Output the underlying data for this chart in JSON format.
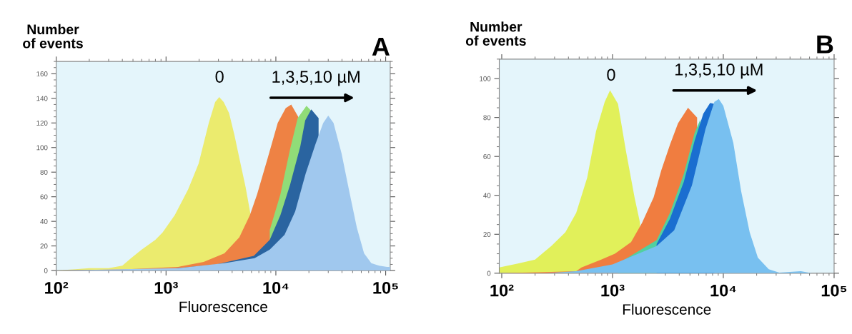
{
  "chart_data": [
    {
      "type": "area",
      "title": "A",
      "xlabel": "Fluorescence",
      "ylabel": "Number\nof events",
      "log": "x",
      "grid": false,
      "legend": false,
      "xlim": [
        100,
        110000
      ],
      "ylim": [
        0,
        170
      ],
      "xticks": [
        {
          "value": 100,
          "label": "10²"
        },
        {
          "value": 1000,
          "label": "10³"
        },
        {
          "value": 10000,
          "label": "10⁴"
        },
        {
          "value": 100000,
          "label": "10⁵"
        }
      ],
      "yticks": [
        0,
        20,
        40,
        60,
        80,
        100,
        120,
        140,
        160
      ],
      "annotations": [
        "0",
        "1,3,5,10 µM"
      ],
      "series": [
        {
          "color": "#ebeb6e",
          "x": [
            100,
            150,
            200,
            300,
            400,
            480,
            600,
            800,
            930,
            1200,
            1590,
            1980,
            2450,
            2800,
            3050,
            3350,
            3750,
            4200,
            4660,
            5300,
            5900
          ],
          "values": [
            0,
            1,
            2,
            2,
            4,
            10,
            17,
            25,
            31,
            45,
            66,
            87,
            120,
            137,
            141,
            137,
            128,
            110,
            91,
            68,
            45
          ]
        },
        {
          "color": "#ee8244",
          "x": [
            100,
            450,
            1290,
            2200,
            3400,
            4650,
            5800,
            6750,
            8400,
            10400,
            12300,
            13800,
            16000
          ],
          "values": [
            0,
            1,
            3,
            7,
            14,
            27,
            45,
            62,
            91,
            120,
            132,
            135,
            125
          ]
        },
        {
          "color": "#90dc78",
          "x": [
            8800,
            11000,
            13500,
            15800,
            19000,
            22000
          ],
          "values": [
            33,
            62,
            99,
            124,
            134,
            128
          ]
        },
        {
          "color": "#2a64a0",
          "x": [
            100,
            1000,
            2870,
            6300,
            8800,
            11000,
            13500,
            16700,
            18500,
            21000,
            24500
          ],
          "values": [
            0,
            1,
            5,
            12,
            25,
            45,
            70,
            101,
            122,
            131,
            124
          ]
        },
        {
          "color": "#a0c8ee",
          "x": [
            100,
            400,
            1290,
            3400,
            6400,
            8800,
            12000,
            15000,
            18700,
            23000,
            27000,
            30000,
            33500,
            39700,
            46700,
            54600,
            63600,
            74000,
            87000,
            103000,
            110000
          ],
          "values": [
            0,
            1,
            2,
            6,
            10,
            17,
            29,
            48,
            79,
            103,
            120,
            126,
            120,
            95,
            64,
            35,
            14,
            6,
            4,
            3,
            3
          ]
        }
      ]
    },
    {
      "type": "area",
      "title": "B",
      "xlabel": "Fluorescence",
      "ylabel": "Number\nof events",
      "log": "x",
      "grid": false,
      "legend": false,
      "xlim": [
        95,
        100000
      ],
      "ylim": [
        0,
        110
      ],
      "xticks": [
        {
          "value": 100,
          "label": "10²"
        },
        {
          "value": 1000,
          "label": "10³"
        },
        {
          "value": 10000,
          "label": "10⁴"
        },
        {
          "value": 100000,
          "label": "10⁵"
        }
      ],
      "yticks": [
        0,
        20,
        40,
        60,
        80,
        100
      ],
      "annotations": [
        "0",
        "1,3,5,10 µM"
      ],
      "series": [
        {
          "color": "#e1f05a",
          "x": [
            95,
            140,
            200,
            280,
            375,
            470,
            590,
            710,
            850,
            950,
            1120,
            1320,
            1580,
            1770
          ],
          "values": [
            3,
            5,
            7,
            14,
            21,
            31,
            49,
            73,
            88,
            94,
            87,
            63,
            39,
            26
          ]
        },
        {
          "color": "#f07d40",
          "x": [
            95,
            470,
            525,
            790,
            1050,
            1470,
            1850,
            2350,
            2760,
            3300,
            3900,
            4800,
            5800
          ],
          "values": [
            0,
            1,
            3,
            7,
            10,
            16,
            26,
            39,
            53,
            66,
            77,
            85,
            80
          ]
        },
        {
          "color": "#50d0a0",
          "x": [
            1120,
            2500,
            3300,
            4400,
            5500,
            6200
          ],
          "values": [
            5,
            17,
            31,
            51,
            72,
            79
          ]
        },
        {
          "color": "#1a6ed0",
          "x": [
            2500,
            3300,
            4400,
            5500,
            6600,
            7600,
            8300
          ],
          "values": [
            15,
            28,
            47,
            68,
            82,
            87.5,
            87
          ]
        },
        {
          "color": "#78c0f0",
          "x": [
            95,
            250,
            470,
            1000,
            2500,
            3600,
            5200,
            6900,
            8300,
            9100,
            10000,
            12300,
            14500,
            17300,
            20500,
            25700,
            32000,
            50000,
            63000,
            100000
          ],
          "values": [
            0,
            0,
            1,
            4.5,
            14,
            22,
            45,
            74,
            88,
            89.5,
            86,
            67,
            42,
            21,
            8,
            2,
            0.3,
            1,
            0,
            0
          ]
        }
      ]
    }
  ]
}
